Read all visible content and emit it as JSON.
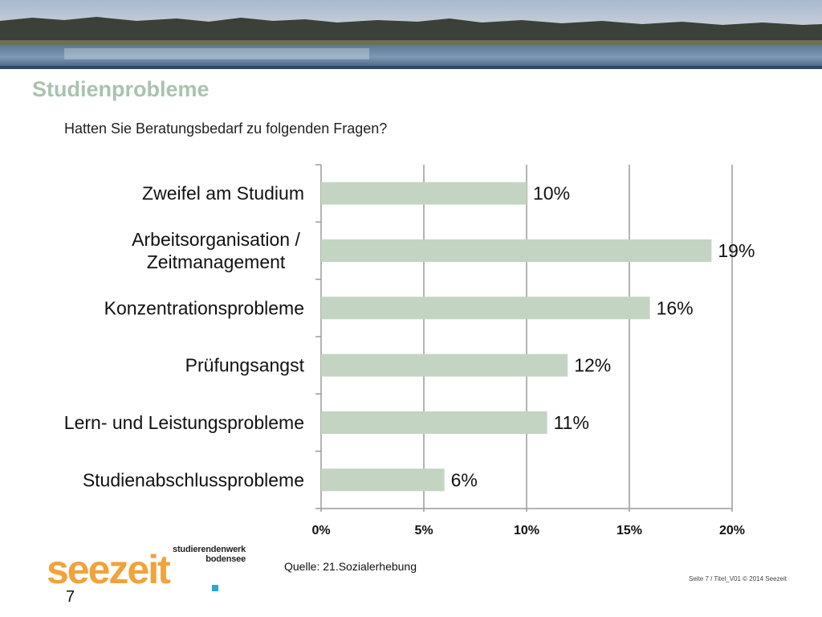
{
  "slide": {
    "title": "Studienprobleme",
    "question": "Hatten Sie Beratungsbedarf zu folgenden Fragen?",
    "source": "Quelle: 21.Sozialerhebung",
    "footer": "Seite 7 / Titel_V01  © 2014 Seezeit",
    "slide_number": "7",
    "logo": {
      "tagline": "studierendenwerk bodensee",
      "wordmark": "seezeit"
    }
  },
  "colors": {
    "title": "#a9c3ad",
    "bar": "#c3d4c3",
    "grid": "#9a9a9a",
    "logo_orange": "#f2a23a",
    "logo_blue": "#2aa6d8"
  },
  "chart_data": {
    "type": "bar",
    "orientation": "horizontal",
    "categories": [
      "Zweifel am Studium",
      "Arbeitsorganisation / Zeitmanagement",
      "Konzentrationsprobleme",
      "Prüfungsangst",
      "Lern- und Leistungsprobleme",
      "Studienabschlussprobleme"
    ],
    "category_lines": [
      [
        "Zweifel am Studium"
      ],
      [
        "Arbeitsorganisation /",
        "Zeitmanagement"
      ],
      [
        "Konzentrationsprobleme"
      ],
      [
        "Prüfungsangst"
      ],
      [
        "Lern- und Leistungsprobleme"
      ],
      [
        "Studienabschlussprobleme"
      ]
    ],
    "values": [
      10,
      19,
      16,
      12,
      11,
      6
    ],
    "value_labels": [
      "10%",
      "19%",
      "16%",
      "12%",
      "11%",
      "6%"
    ],
    "xlim": [
      0,
      20
    ],
    "xticks": [
      0,
      5,
      10,
      15,
      20
    ],
    "xtick_labels": [
      "0%",
      "5%",
      "10%",
      "15%",
      "20%"
    ],
    "grid": true,
    "legend": false
  }
}
